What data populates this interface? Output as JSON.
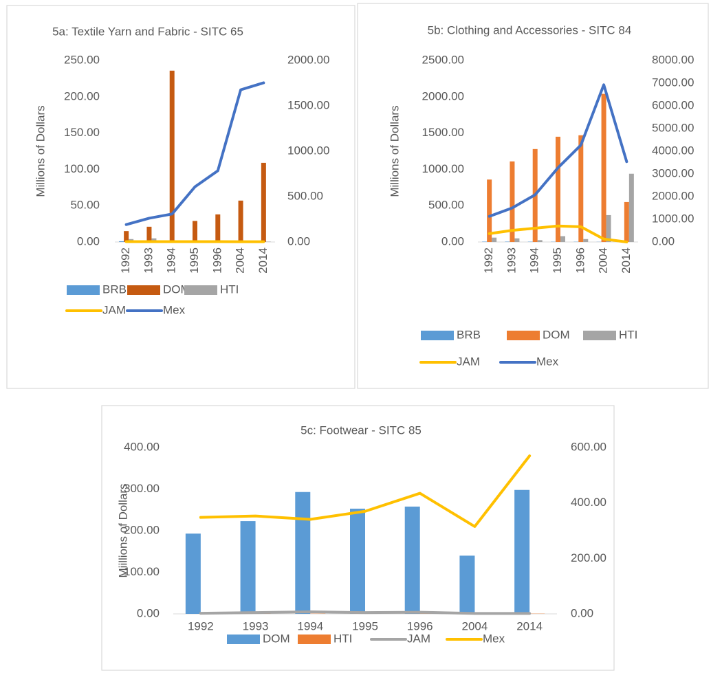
{
  "chart_data": [
    {
      "type": "bar",
      "title": "5a: Textile Yarn and Fabric - SITC 65",
      "y_label": "Millions of Dollars",
      "categories": [
        "1992",
        "1993",
        "1994",
        "1995",
        "1996",
        "2004",
        "2014"
      ],
      "series": [
        {
          "name": "BRB",
          "type": "bar",
          "color": "#5B9BD5",
          "values": [
            1,
            0.5,
            0.5,
            0.3,
            0.3,
            0.3,
            0.3
          ]
        },
        {
          "name": "DOM",
          "type": "bar",
          "color": "#C55A11",
          "values": [
            15,
            21,
            236,
            29,
            38,
            57,
            109
          ]
        },
        {
          "name": "HTI",
          "type": "bar",
          "color": "#A5A5A5",
          "values": [
            4,
            5,
            0.5,
            0.5,
            0.5,
            0.5,
            0.5
          ]
        },
        {
          "name": "JAM",
          "type": "line",
          "color": "#FFC000",
          "values": [
            0.5,
            0.5,
            0.5,
            0.5,
            0.5,
            0.3,
            0.3
          ]
        },
        {
          "name": "Mex",
          "type": "line",
          "color": "#4472C4",
          "axis": "y2",
          "values": [
            192,
            262,
            308,
            608,
            785,
            1677,
            1754
          ]
        }
      ],
      "ylim": [
        0,
        250
      ],
      "yticks": [
        {
          "value": 0,
          "label": "0.00"
        },
        {
          "value": 50,
          "label": "50.00"
        },
        {
          "value": 100,
          "label": "100.00"
        },
        {
          "value": 150,
          "label": "150.00"
        },
        {
          "value": 200,
          "label": "200.00"
        },
        {
          "value": 250,
          "label": "250.00"
        }
      ],
      "y2lim": [
        0,
        2000
      ],
      "y2ticks": [
        {
          "value": 0,
          "label": "0.00"
        },
        {
          "value": 500,
          "label": "500.00"
        },
        {
          "value": 1000,
          "label": "1000.00"
        },
        {
          "value": 1500,
          "label": "1500.00"
        },
        {
          "value": 2000,
          "label": "2000.00"
        }
      ],
      "legend": "bottom"
    },
    {
      "type": "bar",
      "title": "5b: Clothing and Accessories  - SITC 84",
      "y_label": "Millions of Dollars",
      "categories": [
        "1992",
        "1993",
        "1994",
        "1995",
        "1996",
        "2004",
        "2014"
      ],
      "series": [
        {
          "name": "BRB",
          "type": "bar",
          "color": "#5B9BD5",
          "values": [
            5,
            5,
            4,
            3,
            3,
            2,
            2
          ]
        },
        {
          "name": "DOM",
          "type": "bar",
          "color": "#ED7D31",
          "values": [
            860,
            1110,
            1280,
            1450,
            1470,
            2040,
            550
          ]
        },
        {
          "name": "HTI",
          "type": "bar",
          "color": "#A5A5A5",
          "values": [
            60,
            50,
            25,
            80,
            40,
            370,
            940
          ]
        },
        {
          "name": "JAM",
          "type": "line",
          "color": "#FFC000",
          "values": [
            115,
            160,
            190,
            220,
            210,
            40,
            0
          ]
        },
        {
          "name": "Mex",
          "type": "line",
          "color": "#4472C4",
          "axis": "y2",
          "values": [
            1130,
            1500,
            2080,
            3270,
            4270,
            6930,
            3540
          ]
        }
      ],
      "ylim": [
        0,
        2500
      ],
      "yticks": [
        {
          "value": 0,
          "label": "0.00"
        },
        {
          "value": 500,
          "label": "500.00"
        },
        {
          "value": 1000,
          "label": "1000.00"
        },
        {
          "value": 1500,
          "label": "1500.00"
        },
        {
          "value": 2000,
          "label": "2000.00"
        },
        {
          "value": 2500,
          "label": "2500.00"
        }
      ],
      "y2lim": [
        0,
        8000
      ],
      "y2ticks": [
        {
          "value": 0,
          "label": "0.00"
        },
        {
          "value": 1000,
          "label": "1000.00"
        },
        {
          "value": 2000,
          "label": "2000.00"
        },
        {
          "value": 3000,
          "label": "3000.00"
        },
        {
          "value": 4000,
          "label": "4000.00"
        },
        {
          "value": 5000,
          "label": "5000.00"
        },
        {
          "value": 6000,
          "label": "6000.00"
        },
        {
          "value": 7000,
          "label": "7000.00"
        },
        {
          "value": 8000,
          "label": "8000.00"
        }
      ],
      "legend": "bottom"
    },
    {
      "type": "bar",
      "title": "5c: Footwear - SITC 85",
      "y_label": "Miillions of Dollars",
      "categories": [
        "1992",
        "1993",
        "1994",
        "1995",
        "1996",
        "2004",
        "2014"
      ],
      "series": [
        {
          "name": "DOM",
          "type": "bar",
          "color": "#5B9BD5",
          "values": [
            193,
            223,
            293,
            253,
            258,
            140,
            298
          ]
        },
        {
          "name": "HTI",
          "type": "bar",
          "color": "#ED7D31",
          "values": [
            0.5,
            0.5,
            0.5,
            0.5,
            0.5,
            0.5,
            0.5
          ]
        },
        {
          "name": "JAM",
          "type": "line",
          "color": "#A5A5A5",
          "values": [
            1.5,
            3,
            5,
            3,
            4,
            1,
            1
          ]
        },
        {
          "name": "Mex",
          "type": "line",
          "color": "#FFC000",
          "axis": "y2",
          "values": [
            348,
            353,
            341,
            370,
            435,
            315,
            570
          ]
        }
      ],
      "ylim": [
        0,
        400
      ],
      "yticks": [
        {
          "value": 0,
          "label": "0.00"
        },
        {
          "value": 100,
          "label": "100.00"
        },
        {
          "value": 200,
          "label": "200.00"
        },
        {
          "value": 300,
          "label": "300.00"
        },
        {
          "value": 400,
          "label": "400.00"
        }
      ],
      "y2lim": [
        0,
        600
      ],
      "y2ticks": [
        {
          "value": 0,
          "label": "0.00"
        },
        {
          "value": 200,
          "label": "200.00"
        },
        {
          "value": 400,
          "label": "400.00"
        },
        {
          "value": 600,
          "label": "600.00"
        }
      ],
      "legend": "bottom"
    }
  ]
}
